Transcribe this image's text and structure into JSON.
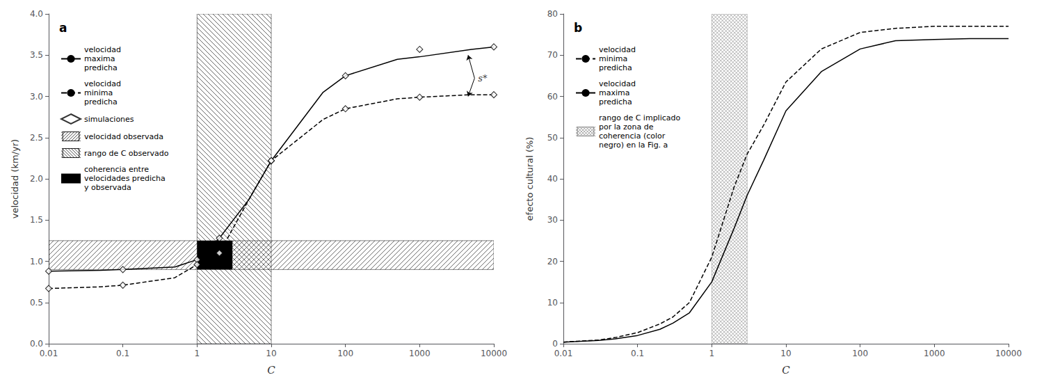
{
  "chart_data": [
    {
      "type": "line",
      "title": "a",
      "xlabel": "C",
      "ylabel": "velocidad (km/yr)",
      "log": "x",
      "grid": false,
      "legend": "upper left",
      "xlim": [
        0.01,
        10000
      ],
      "ylim": [
        0.0,
        4.0
      ],
      "xticks": [
        0.01,
        0.1,
        1,
        10,
        100,
        1000,
        10000
      ],
      "yticks": [
        {
          "value": 0.0,
          "label": "0.0"
        },
        {
          "value": 0.5,
          "label": "0.5"
        },
        {
          "value": 1.0,
          "label": "1.0"
        },
        {
          "value": 1.5,
          "label": "1.5"
        },
        {
          "value": 2.0,
          "label": "2.0"
        },
        {
          "value": 2.5,
          "label": "2.5"
        },
        {
          "value": 3.0,
          "label": "3.0"
        },
        {
          "value": 3.5,
          "label": "3.5"
        },
        {
          "value": 4.0,
          "label": "4.0"
        }
      ],
      "series": [
        {
          "name": "velocidad\nmaxima\npredicha",
          "type": "line",
          "color": "#000000",
          "line_style": "solid",
          "marker": "none",
          "x": [
            0.01,
            0.05,
            0.1,
            0.5,
            1.0,
            2.0,
            5.0,
            10.0,
            50.0,
            100.0,
            500.0,
            1000.0,
            5000.0,
            10000.0
          ],
          "values": [
            0.88,
            0.89,
            0.9,
            0.93,
            1.02,
            1.28,
            1.75,
            2.22,
            3.05,
            3.25,
            3.45,
            3.48,
            3.57,
            3.6
          ]
        },
        {
          "name": "velocidad\nminima\npredicha",
          "type": "line",
          "color": "#000000",
          "line_style": "dashed",
          "marker": "none",
          "x": [
            0.01,
            0.05,
            0.1,
            0.5,
            1.0,
            2.0,
            5.0,
            10.0,
            50.0,
            100.0,
            500.0,
            1000.0,
            5000.0,
            10000.0
          ],
          "values": [
            0.67,
            0.69,
            0.71,
            0.8,
            0.96,
            1.1,
            1.75,
            2.22,
            2.72,
            2.85,
            2.97,
            2.99,
            3.02,
            3.02
          ]
        },
        {
          "name": "simulaciones",
          "type": "scatter",
          "color": "#000000",
          "marker": "diamond",
          "x": [
            0.01,
            0.1,
            1.0,
            2.0,
            10.0,
            100.0,
            1000.0,
            10000.0
          ],
          "values": [
            0.88,
            0.9,
            1.02,
            1.28,
            2.22,
            3.25,
            3.57,
            3.6
          ]
        },
        {
          "name": "simulaciones",
          "type": "scatter",
          "color": "#000000",
          "marker": "diamond",
          "x": [
            0.01,
            0.1,
            1.0,
            2.0,
            10.0,
            100.0,
            1000.0,
            10000.0
          ],
          "values": [
            0.67,
            0.71,
            0.96,
            1.1,
            2.22,
            2.85,
            2.99,
            3.02
          ]
        }
      ],
      "bands": [
        {
          "name": "velocidad observada",
          "type": "hatch_forward",
          "color": "#000000",
          "y_range": [
            0.9,
            1.25
          ]
        },
        {
          "name": "rango de C observado",
          "type": "hatch_back",
          "color": "#000000",
          "x_range": [
            1.0,
            10.0
          ]
        },
        {
          "name": "coherencia entre\nvelocidades predicha\ny observada",
          "type": "solid",
          "color": "#000000",
          "x_range": [
            1.0,
            3.0
          ],
          "y_range": [
            0.9,
            1.25
          ]
        }
      ],
      "annotations": [
        {
          "text": "s*",
          "x": 5500,
          "y": 3.22,
          "arrows_to": [
            [
              4500,
              3.5
            ],
            [
              4500,
              3.0
            ]
          ]
        }
      ]
    },
    {
      "type": "line",
      "title": "b",
      "xlabel": "C",
      "ylabel": "efecto cultural (%)",
      "log": "x",
      "grid": false,
      "legend": "upper left",
      "xlim": [
        0.01,
        10000
      ],
      "ylim": [
        0,
        80
      ],
      "xticks": [
        0.01,
        0.1,
        1,
        10,
        100,
        1000,
        10000
      ],
      "yticks": [
        0,
        10,
        20,
        30,
        40,
        50,
        60,
        70,
        80
      ],
      "series": [
        {
          "name": "velocidad\nminima\npredicha",
          "type": "line",
          "color": "#000000",
          "line_style": "dashed",
          "marker": "none",
          "x": [
            0.01,
            0.03,
            0.05,
            0.1,
            0.2,
            0.3,
            0.5,
            1.0,
            2.0,
            3.0,
            5.0,
            10.0,
            30.0,
            100.0,
            300.0,
            1000.0,
            3000.0,
            10000.0
          ],
          "values": [
            0.4,
            0.9,
            1.5,
            2.7,
            4.8,
            6.5,
            10.0,
            21.0,
            38.0,
            46.0,
            53.0,
            63.5,
            71.5,
            75.5,
            76.5,
            77.0,
            77.0,
            77.0
          ]
        },
        {
          "name": "velocidad\nmaxima\npredicha",
          "type": "line",
          "color": "#000000",
          "line_style": "solid",
          "marker": "none",
          "x": [
            0.01,
            0.03,
            0.05,
            0.1,
            0.2,
            0.3,
            0.5,
            1.0,
            2.0,
            3.0,
            5.0,
            10.0,
            30.0,
            100.0,
            300.0,
            1000.0,
            3000.0,
            10000.0
          ],
          "values": [
            0.4,
            0.8,
            1.2,
            2.0,
            3.5,
            5.0,
            7.5,
            15.0,
            28.0,
            36.0,
            44.5,
            56.5,
            66.0,
            71.5,
            73.5,
            73.8,
            74.0,
            74.0
          ]
        }
      ],
      "bands": [
        {
          "name": "rango de C implicado\npor la zona de\ncoherencia (color\nnegro) en la Fig. a",
          "type": "crosshatch",
          "color": "#808080",
          "x_range": [
            1.0,
            3.0
          ]
        }
      ]
    }
  ]
}
